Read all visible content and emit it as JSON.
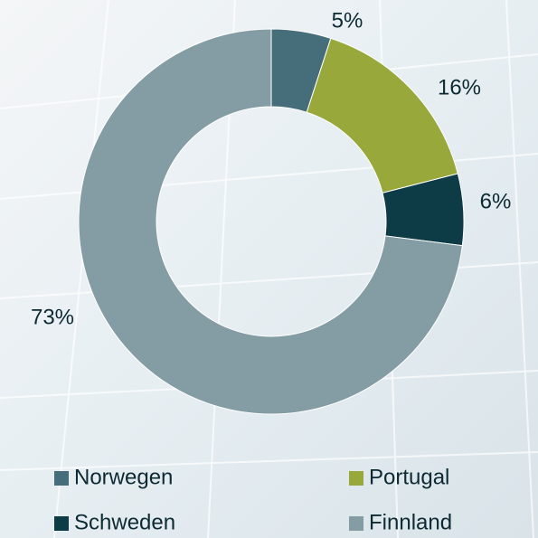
{
  "chart_data": {
    "type": "donut",
    "categories": [
      "Norwegen",
      "Portugal",
      "Schweden",
      "Finnland"
    ],
    "values": [
      5,
      16,
      6,
      73
    ],
    "value_labels": [
      "5%",
      "16%",
      "6%",
      "73%"
    ],
    "colors": [
      "#466e7a",
      "#98a83a",
      "#0d3b46",
      "#849ca3"
    ],
    "legend": "bottom"
  }
}
